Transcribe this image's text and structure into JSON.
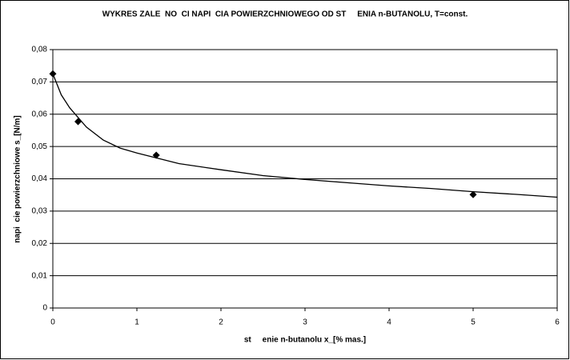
{
  "chart_data": {
    "type": "scatter",
    "title": "WYKRES ZALE  NO  CI NAPI  CIA POWIERZCHNIOWEGO OD ST     ENIA n-BUTANOLU, T=const.",
    "x_label": "st     enie n-butanolu x_[% mas.]",
    "y_label": "napi  cie powierzchniowe s_[N/m]",
    "series": [
      {
        "color": "#000000",
        "x": [
          0,
          0.3,
          1.23,
          5
        ],
        "values": [
          0.0725,
          0.0577,
          0.0473,
          0.0351
        ]
      }
    ],
    "trendline": {
      "color": "#000000",
      "x": [
        0,
        0.1,
        0.2,
        0.4,
        0.6,
        0.8,
        1,
        1.5,
        2,
        2.5,
        3,
        3.5,
        4,
        4.5,
        5,
        5.5,
        6
      ],
      "values": [
        0.0725,
        0.066,
        0.062,
        0.056,
        0.052,
        0.0495,
        0.048,
        0.0447,
        0.0428,
        0.041,
        0.0398,
        0.0388,
        0.0378,
        0.037,
        0.036,
        0.0352,
        0.0343
      ]
    },
    "xlim": [
      0,
      6
    ],
    "ylim": [
      0,
      0.08
    ],
    "xticks": [
      0,
      1,
      2,
      3,
      4,
      5,
      6
    ],
    "yticks": [
      0,
      {
        "value": 0.01,
        "label": "0,01"
      },
      {
        "value": 0.02,
        "label": "0,02"
      },
      {
        "value": 0.03,
        "label": "0,03"
      },
      {
        "value": 0.04,
        "label": "0,04"
      },
      {
        "value": 0.05,
        "label": "0,05"
      },
      {
        "value": 0.06,
        "label": "0,06"
      },
      {
        "value": 0.07,
        "label": "0,07"
      },
      {
        "value": 0.08,
        "label": "0,08"
      }
    ],
    "grid": true
  }
}
